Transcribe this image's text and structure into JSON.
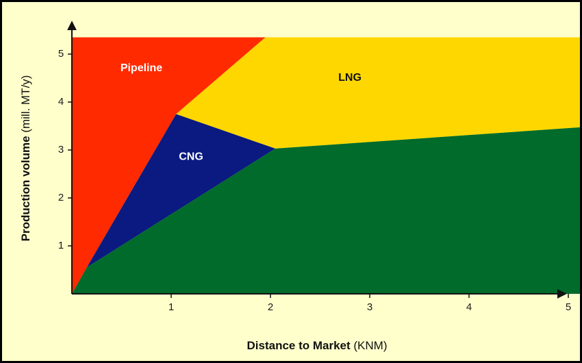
{
  "chart_data": {
    "type": "area",
    "title": "",
    "xlabel": {
      "bold": "Distance to Market",
      "normal": " (KNM)"
    },
    "ylabel": {
      "bold": "Production volume",
      "normal": " (mill. MT/y)"
    },
    "xlim": [
      0,
      5.3
    ],
    "ylim": [
      0,
      5.4
    ],
    "x_ticks": [
      1,
      2,
      3,
      4,
      5
    ],
    "y_ticks": [
      1,
      2,
      3,
      4,
      5
    ],
    "grid": false,
    "legend": "none",
    "regions": [
      {
        "name": "Pipeline",
        "color": "#ff2a00",
        "label_color": "#ffffff",
        "label_at": [
          0.7,
          4.7
        ],
        "polygon": [
          [
            0,
            0
          ],
          [
            0,
            5.35
          ],
          [
            1.95,
            5.35
          ],
          [
            1.05,
            3.75
          ],
          [
            0.15,
            0.55
          ]
        ]
      },
      {
        "name": "CNG",
        "color": "#0a1a80",
        "label_color": "#ffffff",
        "label_at": [
          1.2,
          2.85
        ],
        "polygon": [
          [
            0.15,
            0.55
          ],
          [
            1.05,
            3.75
          ],
          [
            2.05,
            3.03
          ]
        ]
      },
      {
        "name": "LNG",
        "color": "#ffd700",
        "label_color": "#111111",
        "label_at": [
          2.8,
          4.5
        ],
        "polygon": [
          [
            1.95,
            5.35
          ],
          [
            5.3,
            5.35
          ],
          [
            5.3,
            3.5
          ],
          [
            2.05,
            3.03
          ],
          [
            1.05,
            3.75
          ]
        ]
      },
      {
        "name": "",
        "color": "#006b2b",
        "label_color": "#ffffff",
        "label_at": null,
        "polygon": [
          [
            0,
            0
          ],
          [
            0.15,
            0.55
          ],
          [
            2.05,
            3.03
          ],
          [
            5.3,
            3.5
          ],
          [
            5.3,
            0
          ]
        ]
      }
    ]
  }
}
